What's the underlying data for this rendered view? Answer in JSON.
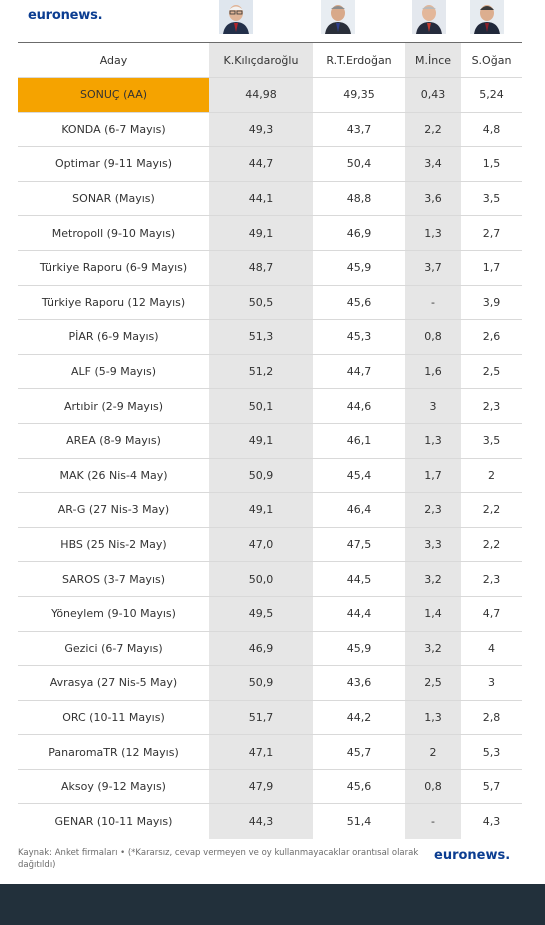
{
  "brand": {
    "logo_text": "euronews."
  },
  "table": {
    "headers": [
      "Aday",
      "K.Kılıçdaroğlu",
      "R.T.Erdoğan",
      "M.İnce",
      "S.Oğan"
    ],
    "result_row": [
      "SONUÇ (AA)",
      "44,98",
      "49,35",
      "0,43",
      "5,24"
    ],
    "rows": [
      [
        "KONDA (6-7 Mayıs)",
        "49,3",
        "43,7",
        "2,2",
        "4,8"
      ],
      [
        "Optimar (9-11 Mayıs)",
        "44,7",
        "50,4",
        "3,4",
        "1,5"
      ],
      [
        "SONAR (Mayıs)",
        "44,1",
        "48,8",
        "3,6",
        "3,5"
      ],
      [
        "Metropoll (9-10 Mayıs)",
        "49,1",
        "46,9",
        "1,3",
        "2,7"
      ],
      [
        "Türkiye Raporu (6-9 Mayıs)",
        "48,7",
        "45,9",
        "3,7",
        "1,7"
      ],
      [
        "Türkiye Raporu (12 Mayıs)",
        "50,5",
        "45,6",
        "-",
        "3,9"
      ],
      [
        "PİAR (6-9 Mayıs)",
        "51,3",
        "45,3",
        "0,8",
        "2,6"
      ],
      [
        "ALF (5-9 Mayıs)",
        "51,2",
        "44,7",
        "1,6",
        "2,5"
      ],
      [
        "Artıbir (2-9 Mayıs)",
        "50,1",
        "44,6",
        "3",
        "2,3"
      ],
      [
        "AREA (8-9 Mayıs)",
        "49,1",
        "46,1",
        "1,3",
        "3,5"
      ],
      [
        "MAK (26 Nis-4 May)",
        "50,9",
        "45,4",
        "1,7",
        "2"
      ],
      [
        "AR-G (27 Nis-3 May)",
        "49,1",
        "46,4",
        "2,3",
        "2,2"
      ],
      [
        "HBS (25 Nis-2 May)",
        "47,0",
        "47,5",
        "3,3",
        "2,2"
      ],
      [
        "SAROS (3-7 Mayıs)",
        "50,0",
        "44,5",
        "3,2",
        "2,3"
      ],
      [
        "Yöneylem (9-10 Mayıs)",
        "49,5",
        "44,4",
        "1,4",
        "4,7"
      ],
      [
        "Gezici (6-7 Mayıs)",
        "46,9",
        "45,9",
        "3,2",
        "4"
      ],
      [
        "Avrasya (27 Nis-5 May)",
        "50,9",
        "43,6",
        "2,5",
        "3"
      ],
      [
        "ORC (10-11 Mayıs)",
        "51,7",
        "44,2",
        "1,3",
        "2,8"
      ],
      [
        "PanaromaTR (12 Mayıs)",
        "47,1",
        "45,7",
        "2",
        "5,3"
      ],
      [
        "Aksoy (9-12 Mayıs)",
        "47,9",
        "45,6",
        "0,8",
        "5,7"
      ],
      [
        "GENAR (10-11 Mayıs)",
        "44,3",
        "51,4",
        "-",
        "4,3"
      ]
    ]
  },
  "footer": {
    "note": "Kaynak: Anket firmaları • (*Kararsız, cevap vermeyen ve oy kullanmayacaklar orantısal olarak dağıtıldı)"
  },
  "colors": {
    "result_highlight": "#f5a300",
    "shaded_column": "#e6e6e6",
    "brand_blue": "#0b3d91",
    "bottom_band": "#22303b"
  },
  "icons": [
    "candidate-photo-kilicdaroglu",
    "candidate-photo-erdogan",
    "candidate-photo-ince",
    "candidate-photo-ogan"
  ]
}
